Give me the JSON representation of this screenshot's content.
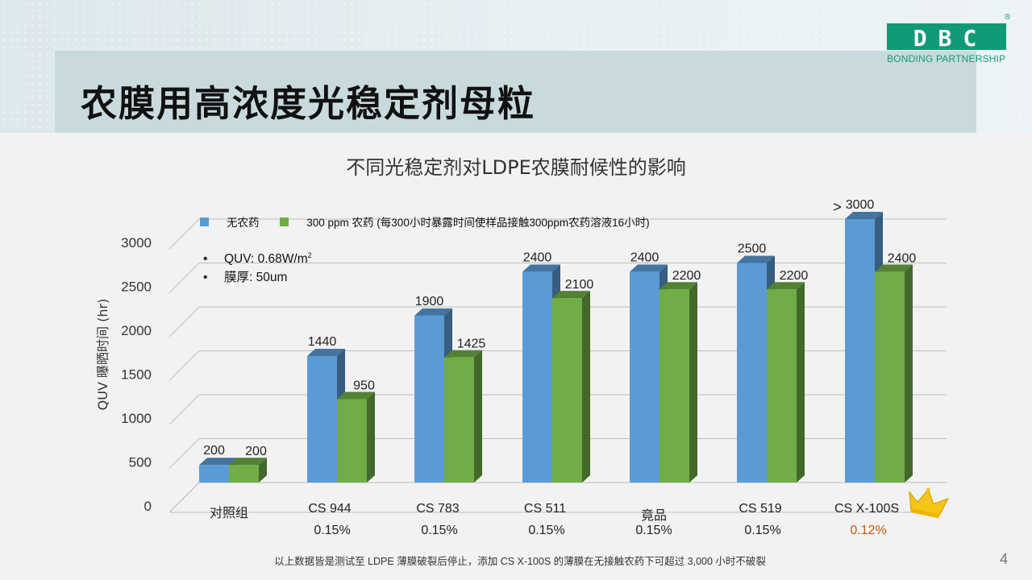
{
  "slide": {
    "title": "农膜用高浓度光稳定剂母粒",
    "page_number": "4",
    "footnote": "以上数据皆是测试至 LDPE 薄膜破裂后停止，添加 CS X-100S 的薄膜在无接触农药下可超过 3,000 小时不破裂"
  },
  "logo": {
    "letters": "DBC",
    "registered": "®",
    "tagline": "BONDING PARTNERSHIP",
    "color": "#129a78"
  },
  "notes": {
    "bullet": "•",
    "quv_prefix": "QUV: 0.68W/m",
    "quv_sup": "2",
    "thickness": "膜厚: 50um"
  },
  "chart_data": {
    "type": "bar",
    "title": "不同光稳定剂对LDPE农膜耐候性的影响",
    "ylabel": "QUV 曝晒时间 (hr)",
    "xlabel": "",
    "ylim": [
      0,
      3000
    ],
    "yticks": [
      "0",
      "500",
      "1000",
      "1500",
      "2000",
      "2500",
      "3000"
    ],
    "grid": true,
    "legend_position": "top-left",
    "categories": [
      "对照组",
      "CS 944",
      "CS 783",
      "CS 511",
      "竟品",
      "CS 519",
      "CS X-100S"
    ],
    "dosages": [
      "",
      "0.15%",
      "0.15%",
      "0.15%",
      "0.15%",
      "0.15%",
      "0.12%"
    ],
    "highlight_dosage_color": "#c55a11",
    "series": [
      {
        "name": "无农药",
        "color": "#5b9bd5",
        "values": [
          200,
          1440,
          1900,
          2400,
          2400,
          2500,
          3000
        ],
        "labels": [
          "200",
          "1440",
          "1900",
          "2400",
          "2400",
          "2500",
          "3000"
        ]
      },
      {
        "name": "300 ppm 农药 (每300小时暴露时间使样品接触300ppm农药溶液16小时)",
        "color": "#70ad47",
        "values": [
          200,
          950,
          1425,
          2100,
          2200,
          2200,
          2400
        ],
        "labels": [
          "200",
          "950",
          "1425",
          "2100",
          "2200",
          "2200",
          "2400"
        ]
      }
    ],
    "annotation": ">"
  }
}
